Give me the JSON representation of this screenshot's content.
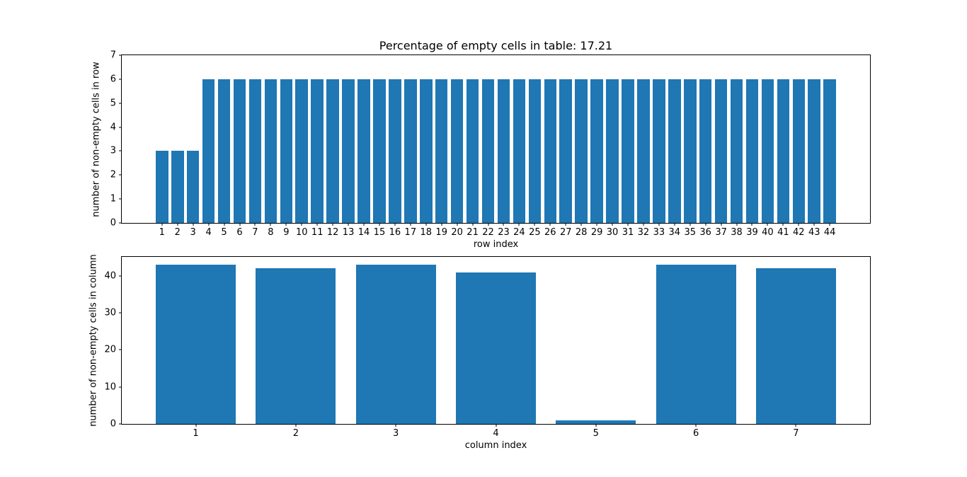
{
  "figure": {
    "background": "#ffffff"
  },
  "chart_data": [
    {
      "type": "bar",
      "title": "Percentage of empty cells in table: 17.21",
      "xlabel": "row index",
      "ylabel": "number of non-empty cells in row",
      "categories": [
        1,
        2,
        3,
        4,
        5,
        6,
        7,
        8,
        9,
        10,
        11,
        12,
        13,
        14,
        15,
        16,
        17,
        18,
        19,
        20,
        21,
        22,
        23,
        24,
        25,
        26,
        27,
        28,
        29,
        30,
        31,
        32,
        33,
        34,
        35,
        36,
        37,
        38,
        39,
        40,
        41,
        42,
        43,
        44
      ],
      "values": [
        3,
        3,
        3,
        6,
        6,
        6,
        6,
        6,
        6,
        6,
        6,
        6,
        6,
        6,
        6,
        6,
        6,
        6,
        6,
        6,
        6,
        6,
        6,
        6,
        6,
        6,
        6,
        6,
        6,
        6,
        6,
        6,
        6,
        6,
        6,
        6,
        6,
        6,
        6,
        6,
        6,
        6,
        6,
        6
      ],
      "ylim": [
        0,
        7
      ],
      "yticks": [
        0,
        1,
        2,
        3,
        4,
        5,
        6,
        7
      ],
      "bar_color": "#1f77b4",
      "bar_width": 0.8,
      "x_margin": 0.05,
      "grid": false,
      "legend": "none"
    },
    {
      "type": "bar",
      "title": "",
      "xlabel": "column index",
      "ylabel": "number of non-empty cells in column",
      "categories": [
        1,
        2,
        3,
        4,
        5,
        6,
        7
      ],
      "values": [
        43,
        42,
        43,
        41,
        1,
        43,
        42
      ],
      "ylim": [
        0,
        45.15
      ],
      "yticks": [
        0,
        10,
        20,
        30,
        40
      ],
      "bar_color": "#1f77b4",
      "bar_width": 0.8,
      "x_margin": 0.05,
      "grid": false,
      "legend": "none"
    }
  ]
}
